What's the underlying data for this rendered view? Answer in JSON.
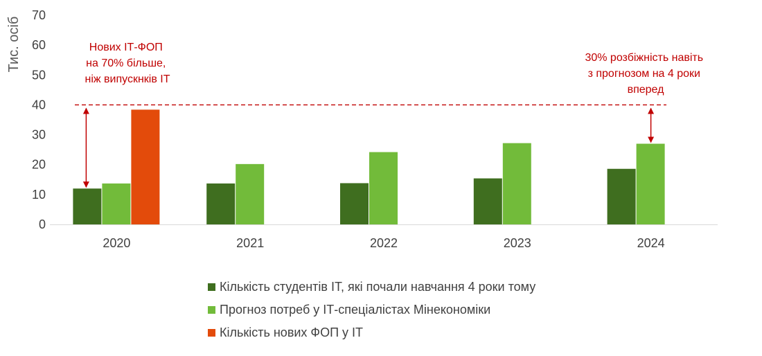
{
  "chart_data": {
    "type": "bar",
    "ylabel": "Тис. осіб",
    "ylim": [
      0,
      70
    ],
    "yticks": [
      "0",
      "10",
      "20",
      "30",
      "40",
      "50",
      "60",
      "70"
    ],
    "categories": [
      "2020",
      "2021",
      "2022",
      "2023",
      "2024"
    ],
    "series": [
      {
        "name": "Кількість студентів ІТ, які почали навчання 4 роки тому",
        "color": "#3f6e1f",
        "values": [
          12,
          13.7,
          13.8,
          15.4,
          18.6
        ]
      },
      {
        "name": "Прогноз потреб у ІТ-спеціалістах Мінекономіки",
        "color": "#72bb3a",
        "values": [
          13.7,
          20.2,
          24.2,
          27.2,
          27.0
        ]
      },
      {
        "name": "Кількість нових ФОП у ІТ",
        "color": "#e34b0b",
        "values": [
          38.4,
          null,
          null,
          null,
          null
        ]
      }
    ],
    "reference_line": {
      "y": 40,
      "style": "dashed",
      "color": "#c00000"
    },
    "annotations": [
      {
        "lines": [
          "Нових ІТ-ФОП",
          "на 70% більше,",
          "ніж випускнків ІТ"
        ],
        "color": "#c00000"
      },
      {
        "lines": [
          "30% розбіжність навіть",
          "з прогнозом на 4 роки",
          "вперед"
        ],
        "color": "#c00000"
      }
    ],
    "legend_position": "bottom",
    "grid": false
  }
}
